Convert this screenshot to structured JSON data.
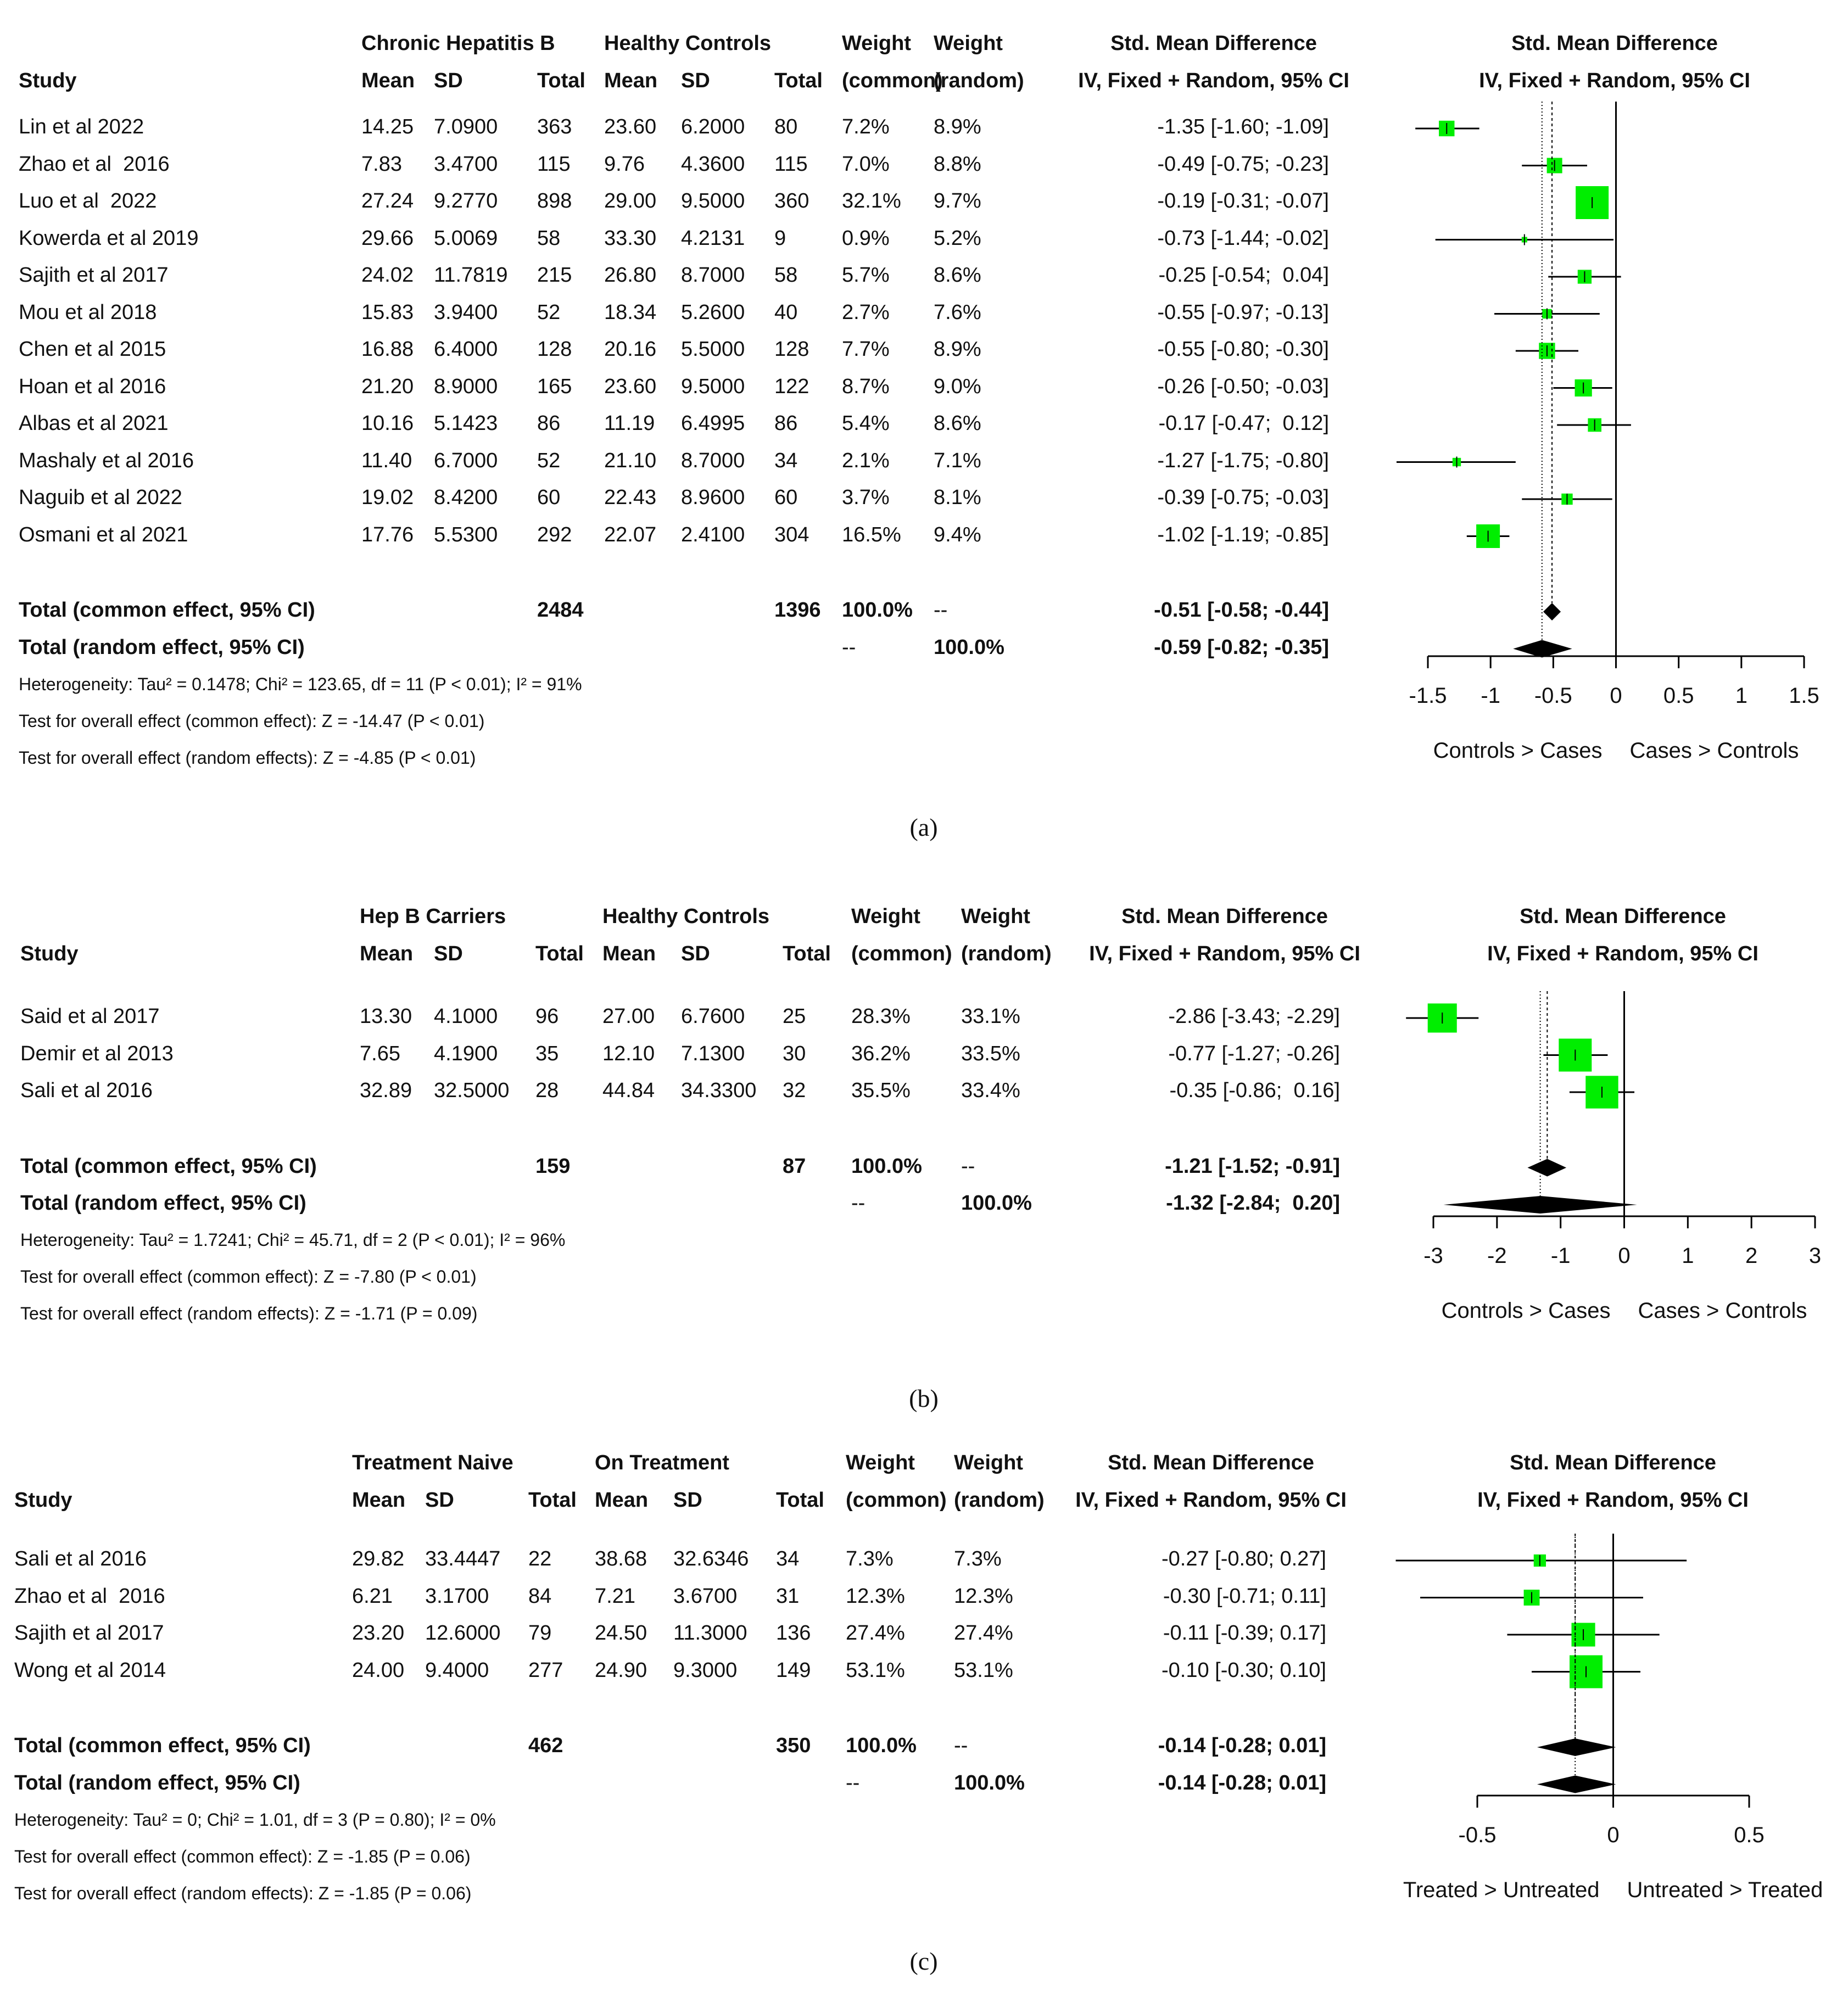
{
  "chart_data": [
    {
      "panel_label": "(a)",
      "type": "forest",
      "header": {
        "group1": "Chronic Hepatitis B",
        "group2": "Healthy Controls",
        "study": "Study",
        "mean": "Mean",
        "sd": "SD",
        "total": "Total",
        "weight": "Weight",
        "common": "(common)",
        "random": "(random)",
        "smd": "Std. Mean Difference",
        "ci": "IV, Fixed + Random, 95% CI"
      },
      "rows": [
        {
          "study": "Lin et al 2022",
          "m1": "14.25",
          "sd1": "7.0900",
          "n1": "363",
          "m2": "23.60",
          "sd2": "6.2000",
          "n2": "80",
          "wc": "7.2%",
          "wr": "8.9%",
          "ci_text": "-1.35 [-1.60; -1.09]",
          "est": -1.35,
          "lo": -1.6,
          "hi": -1.09,
          "w": 7.2
        },
        {
          "study": "Zhao et al  2016",
          "m1": "7.83",
          "sd1": "3.4700",
          "n1": "115",
          "m2": "9.76",
          "sd2": "4.3600",
          "n2": "115",
          "wc": "7.0%",
          "wr": "8.8%",
          "ci_text": "-0.49 [-0.75; -0.23]",
          "est": -0.49,
          "lo": -0.75,
          "hi": -0.23,
          "w": 7.0
        },
        {
          "study": "Luo et al  2022",
          "m1": "27.24",
          "sd1": "9.2770",
          "n1": "898",
          "m2": "29.00",
          "sd2": "9.5000",
          "n2": "360",
          "wc": "32.1%",
          "wr": "9.7%",
          "ci_text": "-0.19 [-0.31; -0.07]",
          "est": -0.19,
          "lo": -0.31,
          "hi": -0.07,
          "w": 32.1
        },
        {
          "study": "Kowerda et al 2019",
          "m1": "29.66",
          "sd1": "5.0069",
          "n1": "58",
          "m2": "33.30",
          "sd2": "4.2131",
          "n2": "9",
          "wc": "0.9%",
          "wr": "5.2%",
          "ci_text": "-0.73 [-1.44; -0.02]",
          "est": -0.73,
          "lo": -1.44,
          "hi": -0.02,
          "w": 0.9
        },
        {
          "study": "Sajith et al 2017",
          "m1": "24.02",
          "sd1": "11.7819",
          "n1": "215",
          "m2": "26.80",
          "sd2": "8.7000",
          "n2": "58",
          "wc": "5.7%",
          "wr": "8.6%",
          "ci_text": "-0.25 [-0.54;  0.04]",
          "est": -0.25,
          "lo": -0.54,
          "hi": 0.04,
          "w": 5.7
        },
        {
          "study": "Mou et al 2018",
          "m1": "15.83",
          "sd1": "3.9400",
          "n1": "52",
          "m2": "18.34",
          "sd2": "5.2600",
          "n2": "40",
          "wc": "2.7%",
          "wr": "7.6%",
          "ci_text": "-0.55 [-0.97; -0.13]",
          "est": -0.55,
          "lo": -0.97,
          "hi": -0.13,
          "w": 2.7
        },
        {
          "study": "Chen et al 2015",
          "m1": "16.88",
          "sd1": "6.4000",
          "n1": "128",
          "m2": "20.16",
          "sd2": "5.5000",
          "n2": "128",
          "wc": "7.7%",
          "wr": "8.9%",
          "ci_text": "-0.55 [-0.80; -0.30]",
          "est": -0.55,
          "lo": -0.8,
          "hi": -0.3,
          "w": 7.7
        },
        {
          "study": "Hoan et al 2016",
          "m1": "21.20",
          "sd1": "8.9000",
          "n1": "165",
          "m2": "23.60",
          "sd2": "9.5000",
          "n2": "122",
          "wc": "8.7%",
          "wr": "9.0%",
          "ci_text": "-0.26 [-0.50; -0.03]",
          "est": -0.26,
          "lo": -0.5,
          "hi": -0.03,
          "w": 8.7
        },
        {
          "study": "Albas et al 2021",
          "m1": "10.16",
          "sd1": "5.1423",
          "n1": "86",
          "m2": "11.19",
          "sd2": "6.4995",
          "n2": "86",
          "wc": "5.4%",
          "wr": "8.6%",
          "ci_text": "-0.17 [-0.47;  0.12]",
          "est": -0.17,
          "lo": -0.47,
          "hi": 0.12,
          "w": 5.4
        },
        {
          "study": "Mashaly et al 2016",
          "m1": "11.40",
          "sd1": "6.7000",
          "n1": "52",
          "m2": "21.10",
          "sd2": "8.7000",
          "n2": "34",
          "wc": "2.1%",
          "wr": "7.1%",
          "ci_text": "-1.27 [-1.75; -0.80]",
          "est": -1.27,
          "lo": -1.75,
          "hi": -0.8,
          "w": 2.1
        },
        {
          "study": "Naguib et al 2022",
          "m1": "19.02",
          "sd1": "8.4200",
          "n1": "60",
          "m2": "22.43",
          "sd2": "8.9600",
          "n2": "60",
          "wc": "3.7%",
          "wr": "8.1%",
          "ci_text": "-0.39 [-0.75; -0.03]",
          "est": -0.39,
          "lo": -0.75,
          "hi": -0.03,
          "w": 3.7
        },
        {
          "study": "Osmani et al 2021",
          "m1": "17.76",
          "sd1": "5.5300",
          "n1": "292",
          "m2": "22.07",
          "sd2": "2.4100",
          "n2": "304",
          "wc": "16.5%",
          "wr": "9.4%",
          "ci_text": "-1.02 [-1.19; -0.85]",
          "est": -1.02,
          "lo": -1.19,
          "hi": -0.85,
          "w": 16.5
        }
      ],
      "common": {
        "label": "Total (common effect, 95% CI)",
        "n1": "2484",
        "n2": "1396",
        "wc": "100.0%",
        "wr": "--",
        "ci_text": "-0.51 [-0.58; -0.44]",
        "est": -0.51,
        "lo": -0.58,
        "hi": -0.44
      },
      "random": {
        "label": "Total (random effect, 95% CI)",
        "wc": "--",
        "wr": "100.0%",
        "ci_text": "-0.59 [-0.82; -0.35]",
        "est": -0.59,
        "lo": -0.82,
        "hi": -0.35
      },
      "footer": [
        "Heterogeneity: Tau² = 0.1478; Chi² = 123.65, df = 11 (P < 0.01); I² = 91%",
        "Test for overall effect (common effect): Z = -14.47 (P < 0.01)",
        "Test for overall effect (random effects): Z = -4.85 (P < 0.01)"
      ],
      "xlim": [
        -1.5,
        1.5
      ],
      "ticks": [
        "-1.5",
        "-1",
        "-0.5",
        "0",
        "0.5",
        "1",
        "1.5"
      ],
      "tick_values": [
        -1.5,
        -1,
        -0.5,
        0,
        0.5,
        1,
        1.5
      ],
      "left_label": "Controls > Cases",
      "right_label": "Cases > Controls",
      "plot_header1": "Std. Mean Difference",
      "plot_header2": "IV, Fixed + Random, 95% CI"
    },
    {
      "panel_label": "(b)",
      "type": "forest",
      "header": {
        "group1": "Hep B Carriers",
        "group2": "Healthy Controls",
        "study": "Study",
        "mean": "Mean",
        "sd": "SD",
        "total": "Total",
        "weight": "Weight",
        "common": "(common)",
        "random": "(random)",
        "smd": "Std. Mean Difference",
        "ci": "IV, Fixed + Random, 95% CI"
      },
      "rows": [
        {
          "study": "Said et al 2017",
          "m1": "13.30",
          "sd1": "4.1000",
          "n1": "96",
          "m2": "27.00",
          "sd2": "6.7600",
          "n2": "25",
          "wc": "28.3%",
          "wr": "33.1%",
          "ci_text": "-2.86 [-3.43; -2.29]",
          "est": -2.86,
          "lo": -3.43,
          "hi": -2.29,
          "w": 28.3
        },
        {
          "study": "Demir et al 2013",
          "m1": "7.65",
          "sd1": "4.1900",
          "n1": "35",
          "m2": "12.10",
          "sd2": "7.1300",
          "n2": "30",
          "wc": "36.2%",
          "wr": "33.5%",
          "ci_text": "-0.77 [-1.27; -0.26]",
          "est": -0.77,
          "lo": -1.27,
          "hi": -0.26,
          "w": 36.2
        },
        {
          "study": "Sali et al 2016",
          "m1": "32.89",
          "sd1": "32.5000",
          "n1": "28",
          "m2": "44.84",
          "sd2": "34.3300",
          "n2": "32",
          "wc": "35.5%",
          "wr": "33.4%",
          "ci_text": "-0.35 [-0.86;  0.16]",
          "est": -0.35,
          "lo": -0.86,
          "hi": 0.16,
          "w": 35.5
        }
      ],
      "common": {
        "label": "Total (common effect, 95% CI)",
        "n1": "159",
        "n2": "87",
        "wc": "100.0%",
        "wr": "--",
        "ci_text": "-1.21 [-1.52; -0.91]",
        "est": -1.21,
        "lo": -1.52,
        "hi": -0.91
      },
      "random": {
        "label": "Total (random effect, 95% CI)",
        "wc": "--",
        "wr": "100.0%",
        "ci_text": "-1.32 [-2.84;  0.20]",
        "est": -1.32,
        "lo": -2.84,
        "hi": 0.2
      },
      "footer": [
        "Heterogeneity: Tau² = 1.7241; Chi² = 45.71, df = 2 (P < 0.01); I² = 96%",
        "Test for overall effect (common effect): Z = -7.80 (P < 0.01)",
        "Test for overall effect (random effects): Z = -1.71 (P = 0.09)"
      ],
      "xlim": [
        -3,
        3
      ],
      "ticks": [
        "-3",
        "-2",
        "-1",
        "0",
        "1",
        "2",
        "3"
      ],
      "tick_values": [
        -3,
        -2,
        -1,
        0,
        1,
        2,
        3
      ],
      "left_label": "Controls > Cases",
      "right_label": "Cases > Controls",
      "plot_header1": "Std. Mean Difference",
      "plot_header2": "IV, Fixed + Random, 95% CI"
    },
    {
      "panel_label": "(c)",
      "type": "forest",
      "header": {
        "group1": "Treatment Naive",
        "group2": "On Treatment",
        "study": "Study",
        "mean": "Mean",
        "sd": "SD",
        "total": "Total",
        "weight": "Weight",
        "common": "(common)",
        "random": "(random)",
        "smd": "Std. Mean Difference",
        "ci": "IV, Fixed + Random, 95% CI"
      },
      "rows": [
        {
          "study": "Sali et al 2016",
          "m1": "29.82",
          "sd1": "33.4447",
          "n1": "22",
          "m2": "38.68",
          "sd2": "32.6346",
          "n2": "34",
          "wc": "7.3%",
          "wr": "7.3%",
          "ci_text": "-0.27 [-0.80; 0.27]",
          "est": -0.27,
          "lo": -0.8,
          "hi": 0.27,
          "w": 7.3
        },
        {
          "study": "Zhao et al  2016",
          "m1": "6.21",
          "sd1": "3.1700",
          "n1": "84",
          "m2": "7.21",
          "sd2": "3.6700",
          "n2": "31",
          "wc": "12.3%",
          "wr": "12.3%",
          "ci_text": "-0.30 [-0.71; 0.11]",
          "est": -0.3,
          "lo": -0.71,
          "hi": 0.11,
          "w": 12.3
        },
        {
          "study": "Sajith et al 2017",
          "m1": "23.20",
          "sd1": "12.6000",
          "n1": "79",
          "m2": "24.50",
          "sd2": "11.3000",
          "n2": "136",
          "wc": "27.4%",
          "wr": "27.4%",
          "ci_text": "-0.11 [-0.39; 0.17]",
          "est": -0.11,
          "lo": -0.39,
          "hi": 0.17,
          "w": 27.4
        },
        {
          "study": "Wong et al 2014",
          "m1": "24.00",
          "sd1": "9.4000",
          "n1": "277",
          "m2": "24.90",
          "sd2": "9.3000",
          "n2": "149",
          "wc": "53.1%",
          "wr": "53.1%",
          "ci_text": "-0.10 [-0.30; 0.10]",
          "est": -0.1,
          "lo": -0.3,
          "hi": 0.1,
          "w": 53.1
        }
      ],
      "common": {
        "label": "Total (common effect, 95% CI)",
        "n1": "462",
        "n2": "350",
        "wc": "100.0%",
        "wr": "--",
        "ci_text": "-0.14 [-0.28; 0.01]",
        "est": -0.14,
        "lo": -0.28,
        "hi": 0.01
      },
      "random": {
        "label": "Total (random effect, 95% CI)",
        "wc": "--",
        "wr": "100.0%",
        "ci_text": "-0.14 [-0.28; 0.01]",
        "est": -0.14,
        "lo": -0.28,
        "hi": 0.01
      },
      "footer": [
        "Heterogeneity: Tau² = 0; Chi² = 1.01, df = 3 (P = 0.80); I² = 0%",
        "Test for overall effect (common effect): Z = -1.85 (P = 0.06)",
        "Test for overall effect (random effects): Z = -1.85 (P = 0.06)"
      ],
      "xlim": [
        -0.5,
        0.5
      ],
      "ticks": [
        "-0.5",
        "0",
        "0.5"
      ],
      "tick_values": [
        -0.5,
        0,
        0.5
      ],
      "left_label": "Treated > Untreated",
      "right_label": "Untreated > Treated",
      "plot_header1": "Std. Mean Difference",
      "plot_header2": "IV, Fixed + Random, 95% CI"
    }
  ],
  "colors": {
    "box": "#00ee00",
    "line": "#000000"
  }
}
